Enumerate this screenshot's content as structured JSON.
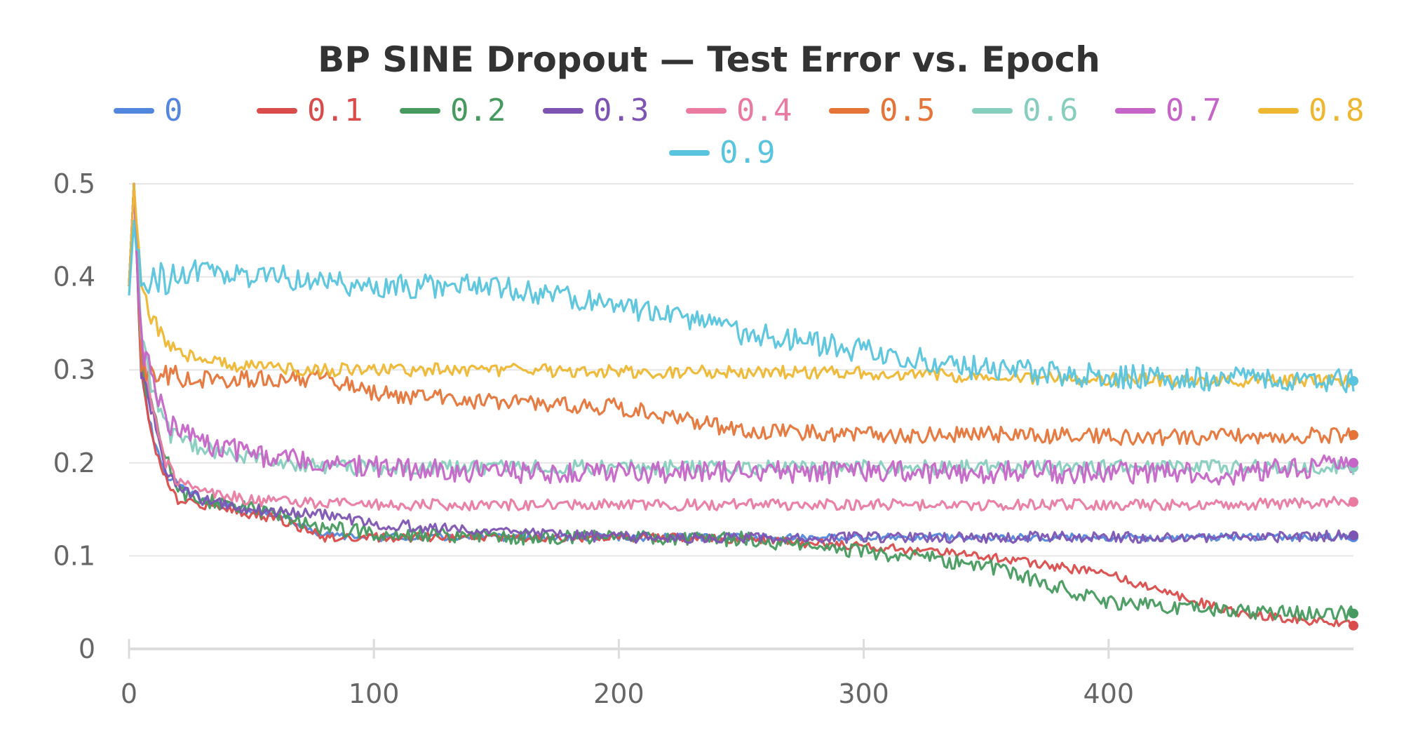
{
  "chart_data": {
    "type": "line",
    "title": "BP SINE Dropout — Test Error vs. Epoch",
    "xlabel": "",
    "ylabel": "",
    "xlim": [
      0,
      500
    ],
    "ylim": [
      0,
      0.5
    ],
    "x_ticks": [
      "0",
      "100",
      "200",
      "300",
      "400"
    ],
    "x_tick_values": [
      0,
      100,
      200,
      300,
      400
    ],
    "y_ticks": [
      "0",
      "0.1",
      "0.2",
      "0.3",
      "0.4",
      "0.5"
    ],
    "y_tick_values": [
      0,
      0.1,
      0.2,
      0.3,
      0.4,
      0.5
    ],
    "grid": true,
    "legend_position": "top",
    "x": [
      0,
      2,
      5,
      10,
      15,
      20,
      30,
      40,
      50,
      60,
      80,
      100,
      150,
      200,
      250,
      300,
      350,
      400,
      450,
      500
    ],
    "series": [
      {
        "name": "0",
        "color": "#5387dd",
        "noise": 0.004,
        "values": [
          0.39,
          0.5,
          0.3,
          0.22,
          0.19,
          0.175,
          0.16,
          0.155,
          0.15,
          0.145,
          0.122,
          0.12,
          0.12,
          0.12,
          0.12,
          0.12,
          0.12,
          0.12,
          0.12,
          0.12
        ]
      },
      {
        "name": "0.1",
        "color": "#da4c4c",
        "noise": 0.005,
        "values": [
          0.39,
          0.5,
          0.3,
          0.22,
          0.18,
          0.16,
          0.155,
          0.15,
          0.145,
          0.14,
          0.12,
          0.12,
          0.12,
          0.12,
          0.118,
          0.11,
          0.1,
          0.08,
          0.04,
          0.025
        ]
      },
      {
        "name": "0.2",
        "color": "#479a5f",
        "noise": 0.008,
        "values": [
          0.39,
          0.5,
          0.31,
          0.25,
          0.2,
          0.17,
          0.16,
          0.155,
          0.15,
          0.145,
          0.13,
          0.125,
          0.12,
          0.12,
          0.118,
          0.105,
          0.09,
          0.05,
          0.04,
          0.038
        ]
      },
      {
        "name": "0.3",
        "color": "#7d54b2",
        "noise": 0.006,
        "values": [
          0.39,
          0.5,
          0.3,
          0.25,
          0.19,
          0.175,
          0.16,
          0.155,
          0.15,
          0.148,
          0.145,
          0.135,
          0.125,
          0.12,
          0.12,
          0.12,
          0.12,
          0.12,
          0.12,
          0.122
        ]
      },
      {
        "name": "0.4",
        "color": "#e87b9f",
        "noise": 0.006,
        "values": [
          0.39,
          0.5,
          0.33,
          0.25,
          0.2,
          0.18,
          0.17,
          0.165,
          0.16,
          0.158,
          0.156,
          0.155,
          0.155,
          0.155,
          0.155,
          0.155,
          0.155,
          0.155,
          0.155,
          0.158
        ]
      },
      {
        "name": "0.5",
        "color": "#e57439",
        "noise": 0.009,
        "values": [
          0.39,
          0.5,
          0.3,
          0.29,
          0.29,
          0.29,
          0.29,
          0.29,
          0.29,
          0.29,
          0.29,
          0.275,
          0.265,
          0.26,
          0.235,
          0.23,
          0.23,
          0.228,
          0.228,
          0.23
        ]
      },
      {
        "name": "0.6",
        "color": "#87cebf",
        "noise": 0.008,
        "values": [
          0.39,
          0.5,
          0.33,
          0.27,
          0.24,
          0.225,
          0.215,
          0.21,
          0.205,
          0.2,
          0.195,
          0.195,
          0.195,
          0.195,
          0.195,
          0.195,
          0.195,
          0.195,
          0.195,
          0.195
        ]
      },
      {
        "name": "0.7",
        "color": "#c565c7",
        "noise": 0.012,
        "values": [
          0.39,
          0.5,
          0.33,
          0.28,
          0.25,
          0.235,
          0.22,
          0.215,
          0.21,
          0.205,
          0.2,
          0.195,
          0.19,
          0.19,
          0.19,
          0.19,
          0.19,
          0.19,
          0.188,
          0.2
        ]
      },
      {
        "name": "0.8",
        "color": "#edb732",
        "noise": 0.007,
        "values": [
          0.39,
          0.5,
          0.4,
          0.35,
          0.33,
          0.32,
          0.31,
          0.305,
          0.305,
          0.3,
          0.3,
          0.3,
          0.3,
          0.298,
          0.298,
          0.297,
          0.292,
          0.29,
          0.288,
          0.288
        ]
      },
      {
        "name": "0.9",
        "color": "#58c4dd",
        "noise": 0.013,
        "values": [
          0.38,
          0.46,
          0.4,
          0.395,
          0.4,
          0.405,
          0.405,
          0.4,
          0.4,
          0.4,
          0.395,
          0.39,
          0.39,
          0.37,
          0.34,
          0.32,
          0.3,
          0.293,
          0.29,
          0.288
        ]
      }
    ]
  }
}
